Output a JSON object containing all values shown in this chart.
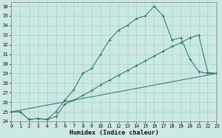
{
  "xlabel": "Humidex (Indice chaleur)",
  "bg_color": "#cce8e5",
  "line_color": "#2d7a6e",
  "grid_color": "#aad4d0",
  "xlim": [
    0,
    23
  ],
  "ylim": [
    24,
    36.4
  ],
  "xticks": [
    0,
    1,
    2,
    3,
    4,
    5,
    6,
    7,
    8,
    9,
    10,
    11,
    12,
    13,
    14,
    15,
    16,
    17,
    18,
    19,
    20,
    21,
    22,
    23
  ],
  "yticks": [
    24,
    25,
    26,
    27,
    28,
    29,
    30,
    31,
    32,
    33,
    34,
    35,
    36
  ],
  "line1_x": [
    0,
    1,
    2,
    3,
    4,
    5,
    6,
    7,
    8,
    9,
    10,
    11,
    12,
    13,
    14,
    15,
    16,
    17,
    18,
    19,
    20,
    21,
    22,
    23
  ],
  "line1_y": [
    25.0,
    25.0,
    24.2,
    24.3,
    24.2,
    25.0,
    26.2,
    27.3,
    29.0,
    29.5,
    31.0,
    32.5,
    33.5,
    34.0,
    34.7,
    35.0,
    36.0,
    35.0,
    32.5,
    32.7,
    30.5,
    29.2,
    29.0,
    29.0
  ],
  "line2_x": [
    0,
    1,
    2,
    3,
    4,
    5,
    6,
    7,
    8,
    9,
    10,
    11,
    12,
    13,
    14,
    15,
    16,
    17,
    18,
    19,
    20,
    21,
    22,
    23
  ],
  "line2_y": [
    25.0,
    25.0,
    24.2,
    24.3,
    24.2,
    24.5,
    25.8,
    26.2,
    26.7,
    27.2,
    27.8,
    28.3,
    28.8,
    29.3,
    29.8,
    30.3,
    30.8,
    31.3,
    31.8,
    32.2,
    32.7,
    33.0,
    29.1,
    29.0
  ],
  "line3_x": [
    0,
    23
  ],
  "line3_y": [
    25.0,
    29.0
  ]
}
